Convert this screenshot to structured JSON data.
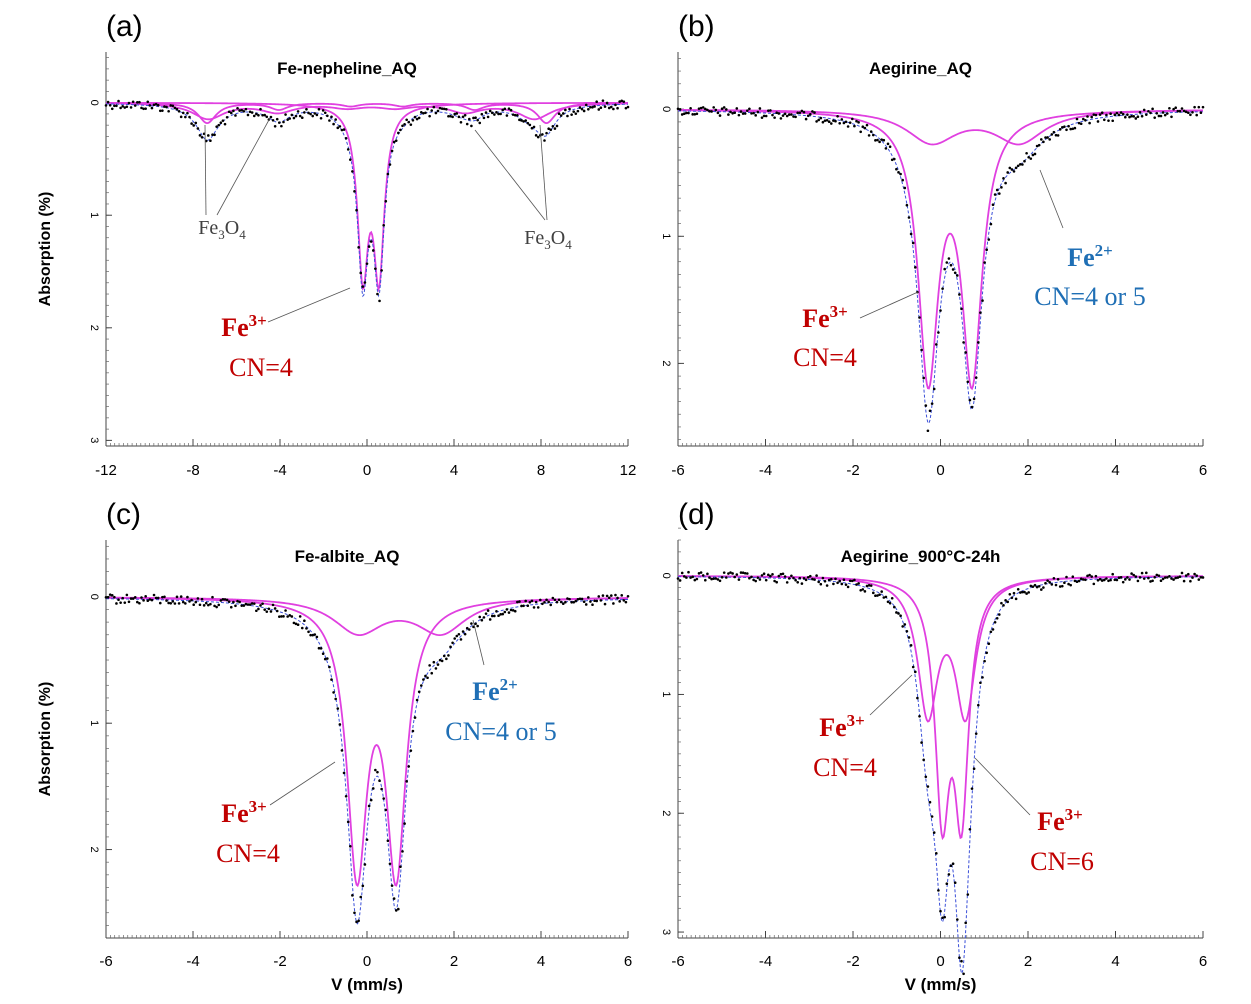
{
  "chart_data": [
    {
      "type": "line",
      "panel_label": "(a)",
      "title": "Fe-nepheline_AQ",
      "xlabel": "",
      "ylabel": "Absorption (%)",
      "xlim": [
        -12,
        12
      ],
      "ylim": [
        3.05,
        -0.45
      ],
      "xticks": [
        "-12",
        "-8",
        "-4",
        "0",
        "4",
        "8",
        "12"
      ],
      "yticks": [
        "0",
        "1",
        "2",
        "3"
      ],
      "series": [
        {
          "kind": "doublet",
          "center": 0.18,
          "split": 0.74,
          "width": 0.3,
          "depth": 1.45,
          "color": "#e040e0"
        },
        {
          "kind": "sextet",
          "center": 0.45,
          "lines": [
            -15.6,
            -9.0,
            -2.4,
            2.4,
            9.0,
            15.6
          ],
          "rel": [
            0.18,
            0.06,
            0.03,
            0.03,
            0.06,
            0.18
          ],
          "width": 0.5,
          "color": "#e040e0"
        },
        {
          "kind": "sextet",
          "center": 0.2,
          "lines": [
            -15.0,
            -8.6,
            -2.2,
            2.2,
            8.6,
            15.0
          ],
          "rel": [
            0.14,
            0.08,
            0.04,
            0.04,
            0.08,
            0.14
          ],
          "width": 0.9,
          "color": "#e040e0"
        }
      ],
      "annotations": [
        {
          "text": "Fe",
          "sub": "3",
          "subtail": "O",
          "sub2": "4",
          "color": "#404040",
          "weight": "normal"
        },
        {
          "text": "Fe",
          "sub": "3",
          "subtail": "O",
          "sub2": "4",
          "color": "#404040",
          "weight": "normal"
        },
        {
          "text": "Fe",
          "sup": "3+",
          "color": "#c00000",
          "weight": "bold"
        },
        {
          "text": "CN=4",
          "color": "#c00000",
          "weight": "normal"
        }
      ]
    },
    {
      "type": "line",
      "panel_label": "(b)",
      "title": "Aegirine_AQ",
      "xlabel": "",
      "ylabel": "",
      "xlim": [
        -6,
        6
      ],
      "ylim": [
        2.65,
        -0.45
      ],
      "xticks": [
        "-6",
        "-4",
        "-2",
        "0",
        "2",
        "4",
        "6"
      ],
      "yticks": [
        "0",
        "1",
        "2"
      ],
      "series": [
        {
          "kind": "doublet",
          "center": 0.22,
          "split": 1.0,
          "width": 0.28,
          "depth": 2.05,
          "color": "#e040e0"
        },
        {
          "kind": "doublet",
          "center": 0.8,
          "split": 2.0,
          "width": 0.7,
          "depth": 0.25,
          "color": "#e040e0"
        }
      ],
      "annotations": [
        {
          "text": "Fe",
          "sup": "2+",
          "color": "#1f6fb5",
          "weight": "bold"
        },
        {
          "text": "CN=4 or 5",
          "color": "#1f6fb5",
          "weight": "normal"
        },
        {
          "text": "Fe",
          "sup": "3+",
          "color": "#c00000",
          "weight": "bold"
        },
        {
          "text": "CN=4",
          "color": "#c00000",
          "weight": "normal"
        }
      ]
    },
    {
      "type": "line",
      "panel_label": "(c)",
      "title": "Fe-albite_AQ",
      "xlabel": "V (mm/s)",
      "ylabel": "Absorption (%)",
      "xlim": [
        -6,
        6
      ],
      "ylim": [
        2.7,
        -0.45
      ],
      "xticks": [
        "-6",
        "-4",
        "-2",
        "0",
        "2",
        "4",
        "6"
      ],
      "yticks": [
        "0",
        "1",
        "2"
      ],
      "series": [
        {
          "kind": "doublet",
          "center": 0.22,
          "split": 0.9,
          "width": 0.28,
          "depth": 2.1,
          "color": "#e040e0"
        },
        {
          "kind": "doublet",
          "center": 0.75,
          "split": 1.9,
          "width": 0.7,
          "depth": 0.27,
          "color": "#e040e0"
        }
      ],
      "annotations": [
        {
          "text": "Fe",
          "sup": "2+",
          "color": "#1f6fb5",
          "weight": "bold"
        },
        {
          "text": "CN=4 or 5",
          "color": "#1f6fb5",
          "weight": "normal"
        },
        {
          "text": "Fe",
          "sup": "3+",
          "color": "#c00000",
          "weight": "bold"
        },
        {
          "text": "CN=4",
          "color": "#c00000",
          "weight": "normal"
        }
      ]
    },
    {
      "type": "line",
      "panel_label": "(d)",
      "title": "Aegirine_900°C-24h",
      "xlabel": "V (mm/s)",
      "ylabel": "",
      "xlim": [
        -6,
        6
      ],
      "ylim": [
        3.05,
        -0.3
      ],
      "xticks": [
        "-6",
        "-4",
        "-2",
        "0",
        "2",
        "4",
        "6"
      ],
      "yticks": [
        "0",
        "1",
        "2",
        "3"
      ],
      "series": [
        {
          "kind": "doublet",
          "center": 0.14,
          "split": 0.86,
          "width": 0.28,
          "depth": 1.12,
          "color": "#e040e0"
        },
        {
          "kind": "doublet",
          "center": 0.26,
          "split": 0.44,
          "width": 0.2,
          "depth": 1.88,
          "color": "#e040e0"
        }
      ],
      "annotations": [
        {
          "text": "Fe",
          "sup": "3+",
          "color": "#c00000",
          "weight": "bold"
        },
        {
          "text": "CN=4",
          "color": "#c00000",
          "weight": "normal"
        },
        {
          "text": "Fe",
          "sup": "3+",
          "color": "#c00000",
          "weight": "bold"
        },
        {
          "text": "CN=6",
          "color": "#c00000",
          "weight": "normal"
        }
      ]
    }
  ],
  "colors": {
    "fit": "#e040e0",
    "total_fit": "#3a4fd8",
    "data": "#000000"
  }
}
